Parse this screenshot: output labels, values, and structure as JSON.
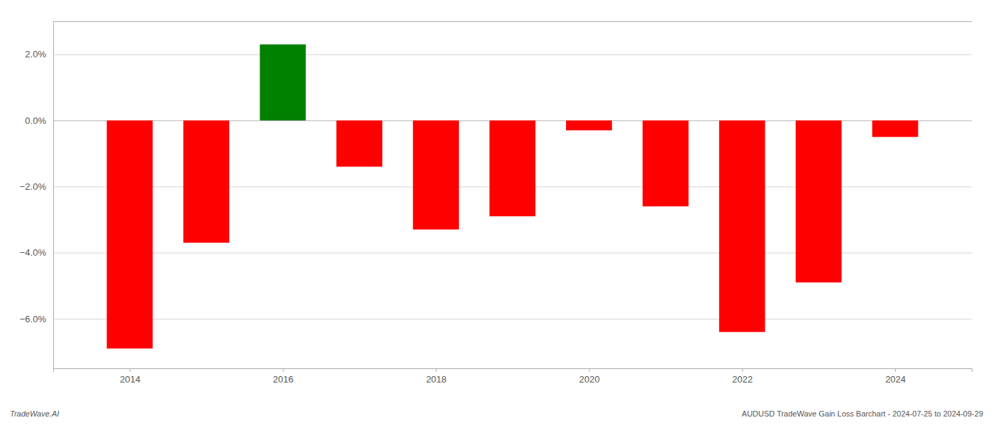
{
  "chart_data": {
    "type": "bar",
    "x": [
      2014,
      2015,
      2016,
      2017,
      2018,
      2019,
      2020,
      2021,
      2022,
      2023,
      2024
    ],
    "values": [
      -6.9,
      -3.7,
      2.3,
      -1.4,
      -3.3,
      -2.9,
      -0.3,
      -2.6,
      -6.4,
      -4.9,
      -0.5
    ],
    "colors": [
      "#ff0000",
      "#ff0000",
      "#008000",
      "#ff0000",
      "#ff0000",
      "#ff0000",
      "#ff0000",
      "#ff0000",
      "#ff0000",
      "#ff0000",
      "#ff0000"
    ],
    "xlim": [
      2013,
      2025
    ],
    "xticks": [
      2014,
      2016,
      2018,
      2020,
      2022,
      2024
    ],
    "ylim": [
      -7.5,
      3.0
    ],
    "yticks": [
      {
        "value": 2.0,
        "label": "2.0%"
      },
      {
        "value": 0.0,
        "label": "0.0%"
      },
      {
        "value": -2.0,
        "label": "−2.0%"
      },
      {
        "value": -4.0,
        "label": "−4.0%"
      },
      {
        "value": -6.0,
        "label": "−6.0%"
      }
    ],
    "grid": true,
    "annotations": [
      "TradeWave.AI",
      "AUDUSD TradeWave Gain Loss Barchart - 2024-07-25 to 2024-09-29"
    ]
  }
}
